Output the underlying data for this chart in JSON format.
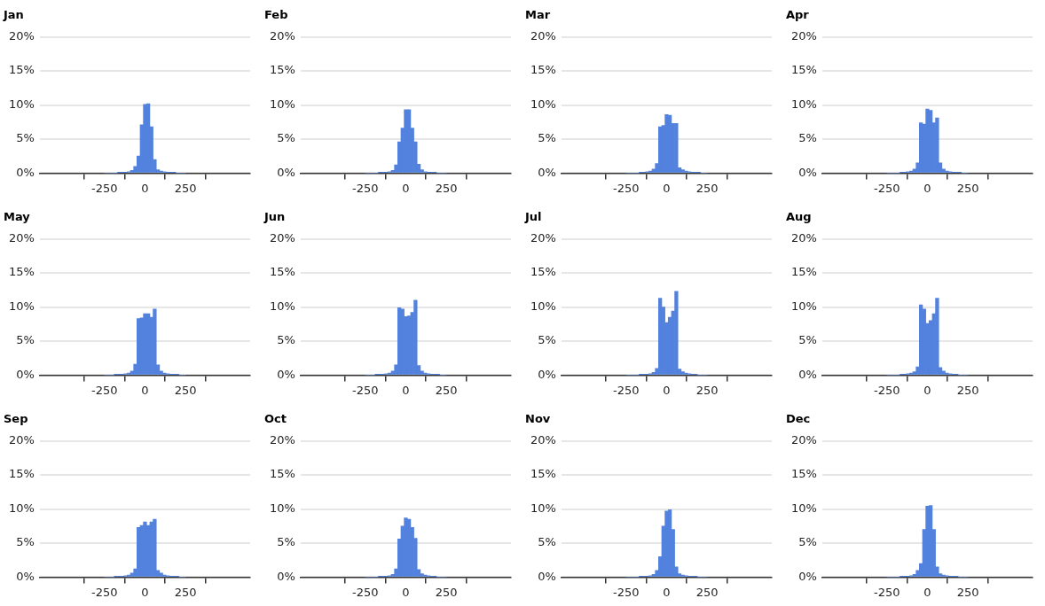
{
  "chart_data": [
    {
      "type": "histogram",
      "title": "Jan",
      "bins": [
        -250,
        -230,
        -210,
        -190,
        -170,
        -150,
        -130,
        -110,
        -90,
        -70,
        -50,
        -30,
        -10,
        10,
        30,
        50,
        70,
        90,
        110,
        130,
        150,
        170,
        190,
        210,
        230,
        250
      ],
      "values": [
        0,
        0,
        0,
        0,
        0.1,
        0.1,
        0.1,
        0.2,
        0.4,
        1.0,
        2.5,
        7.1,
        10.1,
        10.2,
        6.8,
        2.0,
        0.5,
        0.3,
        0.2,
        0.1,
        0.1,
        0.1,
        0,
        0,
        0
      ],
      "color": "#5282de",
      "xlim": [
        -650,
        650
      ],
      "xticks": [
        -250,
        0,
        250
      ],
      "ylim": [
        0,
        20
      ],
      "yticks": [
        {
          "value": 0,
          "label": "0%"
        },
        {
          "value": 5,
          "label": "5%"
        },
        {
          "value": 10,
          "label": "10%"
        },
        {
          "value": 15,
          "label": "15%"
        },
        {
          "value": 20,
          "label": "20%"
        }
      ],
      "grid": "y",
      "legend": false
    },
    {
      "type": "histogram",
      "title": "Feb",
      "bins": [
        -250,
        -230,
        -210,
        -190,
        -170,
        -150,
        -130,
        -110,
        -90,
        -70,
        -50,
        -30,
        -10,
        10,
        30,
        50,
        70,
        90,
        110,
        130,
        150,
        170,
        190,
        210,
        230,
        250
      ],
      "values": [
        0,
        0,
        0,
        0,
        0.1,
        0.1,
        0.1,
        0.2,
        0.4,
        1.2,
        4.6,
        6.6,
        9.3,
        9.3,
        6.6,
        4.6,
        1.3,
        0.5,
        0.2,
        0.1,
        0.1,
        0.1,
        0,
        0,
        0
      ],
      "color": "#5282de",
      "xlim": [
        -650,
        650
      ],
      "xticks": [
        -250,
        0,
        250
      ],
      "ylim": [
        0,
        20
      ],
      "yticks": [
        {
          "value": 0,
          "label": "0%"
        },
        {
          "value": 5,
          "label": "5%"
        },
        {
          "value": 10,
          "label": "10%"
        },
        {
          "value": 15,
          "label": "15%"
        },
        {
          "value": 20,
          "label": "20%"
        }
      ],
      "grid": "y",
      "legend": false
    },
    {
      "type": "histogram",
      "title": "Mar",
      "bins": [
        -250,
        -230,
        -210,
        -190,
        -170,
        -150,
        -130,
        -110,
        -90,
        -70,
        -50,
        -30,
        -10,
        10,
        30,
        50,
        70,
        90,
        110,
        130,
        150,
        170,
        190,
        210,
        230,
        250
      ],
      "values": [
        0,
        0,
        0,
        0,
        0.1,
        0.1,
        0.2,
        0.3,
        0.6,
        1.4,
        6.8,
        7.0,
        8.6,
        8.5,
        7.3,
        7.3,
        0.8,
        0.5,
        0.3,
        0.2,
        0.1,
        0.1,
        0.1,
        0,
        0
      ],
      "color": "#5282de",
      "xlim": [
        -650,
        650
      ],
      "xticks": [
        -250,
        0,
        250
      ],
      "ylim": [
        0,
        20
      ],
      "yticks": [
        {
          "value": 0,
          "label": "0%"
        },
        {
          "value": 5,
          "label": "5%"
        },
        {
          "value": 10,
          "label": "10%"
        },
        {
          "value": 15,
          "label": "15%"
        },
        {
          "value": 20,
          "label": "20%"
        }
      ],
      "grid": "y",
      "legend": false
    },
    {
      "type": "histogram",
      "title": "Apr",
      "bins": [
        -250,
        -230,
        -210,
        -190,
        -170,
        -150,
        -130,
        -110,
        -90,
        -70,
        -50,
        -30,
        -10,
        10,
        30,
        50,
        70,
        90,
        110,
        130,
        150,
        170,
        190,
        210,
        230,
        250
      ],
      "values": [
        0,
        0,
        0,
        0,
        0.1,
        0.1,
        0.2,
        0.3,
        0.6,
        1.5,
        7.4,
        7.2,
        9.4,
        9.2,
        7.4,
        8.1,
        1.5,
        0.6,
        0.3,
        0.2,
        0.1,
        0.1,
        0.1,
        0,
        0
      ],
      "color": "#5282de",
      "xlim": [
        -650,
        650
      ],
      "xticks": [
        -250,
        0,
        250
      ],
      "ylim": [
        0,
        20
      ],
      "yticks": [
        {
          "value": 0,
          "label": "0%"
        },
        {
          "value": 5,
          "label": "5%"
        },
        {
          "value": 10,
          "label": "10%"
        },
        {
          "value": 15,
          "label": "15%"
        },
        {
          "value": 20,
          "label": "20%"
        }
      ],
      "grid": "y",
      "legend": false
    },
    {
      "type": "histogram",
      "title": "May",
      "bins": [
        -250,
        -230,
        -210,
        -190,
        -170,
        -150,
        -130,
        -110,
        -90,
        -70,
        -50,
        -30,
        -10,
        10,
        30,
        50,
        70,
        90,
        110,
        130,
        150,
        170,
        190,
        210,
        230,
        250
      ],
      "values": [
        0,
        0,
        0,
        0.1,
        0.1,
        0.1,
        0.2,
        0.3,
        0.6,
        1.6,
        8.3,
        8.4,
        9.0,
        9.0,
        8.5,
        9.7,
        1.5,
        0.6,
        0.3,
        0.2,
        0.1,
        0.1,
        0.1,
        0,
        0
      ],
      "color": "#5282de",
      "xlim": [
        -650,
        650
      ],
      "xticks": [
        -250,
        0,
        250
      ],
      "ylim": [
        0,
        20
      ],
      "yticks": [
        {
          "value": 0,
          "label": "0%"
        },
        {
          "value": 5,
          "label": "5%"
        },
        {
          "value": 10,
          "label": "10%"
        },
        {
          "value": 15,
          "label": "15%"
        },
        {
          "value": 20,
          "label": "20%"
        }
      ],
      "grid": "y",
      "legend": false
    },
    {
      "type": "histogram",
      "title": "Jun",
      "bins": [
        -250,
        -230,
        -210,
        -190,
        -170,
        -150,
        -130,
        -110,
        -90,
        -70,
        -50,
        -30,
        -10,
        10,
        30,
        50,
        70,
        90,
        110,
        130,
        150,
        170,
        190,
        210,
        230,
        250
      ],
      "values": [
        0,
        0,
        0,
        0.1,
        0.1,
        0.1,
        0.2,
        0.3,
        0.6,
        1.5,
        9.9,
        9.7,
        8.6,
        8.7,
        9.2,
        11.0,
        1.4,
        0.6,
        0.3,
        0.2,
        0.1,
        0.1,
        0.1,
        0,
        0
      ],
      "color": "#5282de",
      "xlim": [
        -650,
        650
      ],
      "xticks": [
        -250,
        0,
        250
      ],
      "ylim": [
        0,
        20
      ],
      "yticks": [
        {
          "value": 0,
          "label": "0%"
        },
        {
          "value": 5,
          "label": "5%"
        },
        {
          "value": 10,
          "label": "10%"
        },
        {
          "value": 15,
          "label": "15%"
        },
        {
          "value": 20,
          "label": "20%"
        }
      ],
      "grid": "y",
      "legend": false
    },
    {
      "type": "histogram",
      "title": "Jul",
      "bins": [
        -250,
        -230,
        -210,
        -190,
        -170,
        -150,
        -130,
        -110,
        -90,
        -70,
        -50,
        -30,
        -10,
        10,
        30,
        50,
        70,
        90,
        110,
        130,
        150,
        170,
        190,
        210,
        230,
        250
      ],
      "values": [
        0,
        0,
        0,
        0,
        0.1,
        0.1,
        0.1,
        0.2,
        0.4,
        1.0,
        11.3,
        10.0,
        7.7,
        8.5,
        9.4,
        12.3,
        0.9,
        0.5,
        0.3,
        0.2,
        0.1,
        0.1,
        0,
        0,
        0
      ],
      "color": "#5282de",
      "xlim": [
        -650,
        650
      ],
      "xticks": [
        -250,
        0,
        250
      ],
      "ylim": [
        0,
        20
      ],
      "yticks": [
        {
          "value": 0,
          "label": "0%"
        },
        {
          "value": 5,
          "label": "5%"
        },
        {
          "value": 10,
          "label": "10%"
        },
        {
          "value": 15,
          "label": "15%"
        },
        {
          "value": 20,
          "label": "20%"
        }
      ],
      "grid": "y",
      "legend": false
    },
    {
      "type": "histogram",
      "title": "Aug",
      "bins": [
        -250,
        -230,
        -210,
        -190,
        -170,
        -150,
        -130,
        -110,
        -90,
        -70,
        -50,
        -30,
        -10,
        10,
        30,
        50,
        70,
        90,
        110,
        130,
        150,
        170,
        190,
        210,
        230,
        250
      ],
      "values": [
        0,
        0,
        0,
        0,
        0.1,
        0.1,
        0.2,
        0.3,
        0.5,
        1.2,
        10.3,
        9.7,
        7.6,
        8.0,
        9.0,
        11.3,
        1.1,
        0.6,
        0.3,
        0.2,
        0.1,
        0.1,
        0,
        0,
        0
      ],
      "color": "#5282de",
      "xlim": [
        -650,
        650
      ],
      "xticks": [
        -250,
        0,
        250
      ],
      "ylim": [
        0,
        20
      ],
      "yticks": [
        {
          "value": 0,
          "label": "0%"
        },
        {
          "value": 5,
          "label": "5%"
        },
        {
          "value": 10,
          "label": "10%"
        },
        {
          "value": 15,
          "label": "15%"
        },
        {
          "value": 20,
          "label": "20%"
        }
      ],
      "grid": "y",
      "legend": false
    },
    {
      "type": "histogram",
      "title": "Sep",
      "bins": [
        -250,
        -230,
        -210,
        -190,
        -170,
        -150,
        -130,
        -110,
        -90,
        -70,
        -50,
        -30,
        -10,
        10,
        30,
        50,
        70,
        90,
        110,
        130,
        150,
        170,
        190,
        210,
        230,
        250
      ],
      "values": [
        0,
        0,
        0,
        0.1,
        0.1,
        0.1,
        0.2,
        0.3,
        0.6,
        1.2,
        7.3,
        7.6,
        8.1,
        7.6,
        8.1,
        8.5,
        1.0,
        0.6,
        0.3,
        0.2,
        0.1,
        0.1,
        0.1,
        0,
        0
      ],
      "color": "#5282de",
      "xlim": [
        -650,
        650
      ],
      "xticks": [
        -250,
        0,
        250
      ],
      "ylim": [
        0,
        20
      ],
      "yticks": [
        {
          "value": 0,
          "label": "0%"
        },
        {
          "value": 5,
          "label": "5%"
        },
        {
          "value": 10,
          "label": "10%"
        },
        {
          "value": 15,
          "label": "15%"
        },
        {
          "value": 20,
          "label": "20%"
        }
      ],
      "grid": "y",
      "legend": false
    },
    {
      "type": "histogram",
      "title": "Oct",
      "bins": [
        -250,
        -230,
        -210,
        -190,
        -170,
        -150,
        -130,
        -110,
        -90,
        -70,
        -50,
        -30,
        -10,
        10,
        30,
        50,
        70,
        90,
        110,
        130,
        150,
        170,
        190,
        210,
        230,
        250
      ],
      "values": [
        0,
        0,
        0,
        0,
        0.1,
        0.1,
        0.1,
        0.2,
        0.4,
        1.2,
        5.6,
        7.5,
        8.7,
        8.5,
        7.3,
        5.7,
        1.1,
        0.5,
        0.3,
        0.2,
        0.1,
        0.1,
        0,
        0,
        0
      ],
      "color": "#5282de",
      "xlim": [
        -650,
        650
      ],
      "xticks": [
        -250,
        0,
        250
      ],
      "ylim": [
        0,
        20
      ],
      "yticks": [
        {
          "value": 0,
          "label": "0%"
        },
        {
          "value": 5,
          "label": "5%"
        },
        {
          "value": 10,
          "label": "10%"
        },
        {
          "value": 15,
          "label": "15%"
        },
        {
          "value": 20,
          "label": "20%"
        }
      ],
      "grid": "y",
      "legend": false
    },
    {
      "type": "histogram",
      "title": "Nov",
      "bins": [
        -250,
        -230,
        -210,
        -190,
        -170,
        -150,
        -130,
        -110,
        -90,
        -70,
        -50,
        -30,
        -10,
        10,
        30,
        50,
        70,
        90,
        110,
        130,
        150,
        170,
        190,
        210,
        230,
        250
      ],
      "values": [
        0,
        0,
        0,
        0,
        0.1,
        0.1,
        0.1,
        0.2,
        0.4,
        1.0,
        3.0,
        7.5,
        9.7,
        9.9,
        7.0,
        1.5,
        0.5,
        0.3,
        0.2,
        0.1,
        0.1,
        0.1,
        0,
        0,
        0
      ],
      "color": "#5282de",
      "xlim": [
        -650,
        650
      ],
      "xticks": [
        -250,
        0,
        250
      ],
      "ylim": [
        0,
        20
      ],
      "yticks": [
        {
          "value": 0,
          "label": "0%"
        },
        {
          "value": 5,
          "label": "5%"
        },
        {
          "value": 10,
          "label": "10%"
        },
        {
          "value": 15,
          "label": "15%"
        },
        {
          "value": 20,
          "label": "20%"
        }
      ],
      "grid": "y",
      "legend": false
    },
    {
      "type": "histogram",
      "title": "Dec",
      "bins": [
        -250,
        -230,
        -210,
        -190,
        -170,
        -150,
        -130,
        -110,
        -90,
        -70,
        -50,
        -30,
        -10,
        10,
        30,
        50,
        70,
        90,
        110,
        130,
        150,
        170,
        190,
        210,
        230,
        250
      ],
      "values": [
        0,
        0,
        0,
        0,
        0.1,
        0.1,
        0.1,
        0.2,
        0.4,
        1.0,
        2.0,
        7.0,
        10.4,
        10.5,
        7.0,
        1.5,
        0.5,
        0.3,
        0.2,
        0.1,
        0.1,
        0.1,
        0,
        0,
        0
      ],
      "color": "#5282de",
      "xlim": [
        -650,
        650
      ],
      "xticks": [
        -250,
        0,
        250
      ],
      "ylim": [
        0,
        20
      ],
      "yticks": [
        {
          "value": 0,
          "label": "0%"
        },
        {
          "value": 5,
          "label": "5%"
        },
        {
          "value": 10,
          "label": "10%"
        },
        {
          "value": 15,
          "label": "15%"
        },
        {
          "value": 20,
          "label": "20%"
        }
      ],
      "grid": "y",
      "legend": false
    }
  ]
}
